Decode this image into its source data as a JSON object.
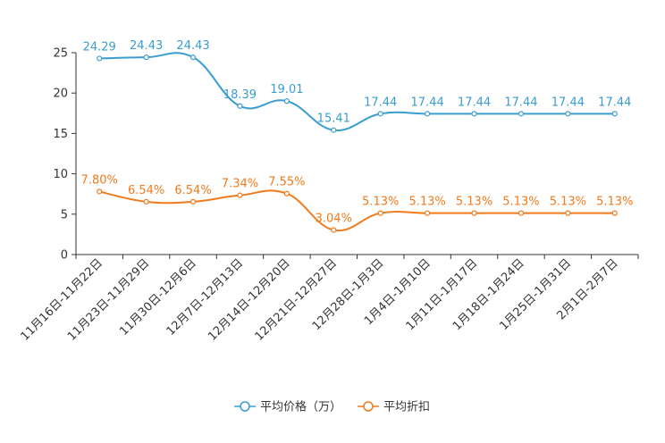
{
  "chart_data": {
    "type": "line",
    "categories": [
      "11月16日-11月22日",
      "11月23日-11月29日",
      "11月30日-12月6日",
      "12月7日-12月13日",
      "12月14日-12月20日",
      "12月21日-12月27日",
      "12月28日-1月3日",
      "1月4日-1月10日",
      "1月11日-1月17日",
      "1月18日-1月24日",
      "1月25日-1月31日",
      "2月1日-2月7日"
    ],
    "ylim": [
      0,
      25
    ],
    "yticks": [
      "0",
      "5",
      "10",
      "15",
      "20",
      "25"
    ],
    "series": [
      {
        "name": "平均价格（万）",
        "color": "#3a9dcf",
        "values": [
          24.29,
          24.43,
          24.43,
          18.39,
          19.01,
          15.41,
          17.44,
          17.44,
          17.44,
          17.44,
          17.44,
          17.44
        ],
        "labels": [
          "24.29",
          "24.43",
          "24.43",
          "18.39",
          "19.01",
          "15.41",
          "17.44",
          "17.44",
          "17.44",
          "17.44",
          "17.44",
          "17.44"
        ]
      },
      {
        "name": "平均折扣",
        "color": "#f07b1d",
        "values": [
          7.8,
          6.54,
          6.54,
          7.34,
          7.55,
          3.04,
          5.13,
          5.13,
          5.13,
          5.13,
          5.13,
          5.13
        ],
        "labels": [
          "7.80%",
          "6.54%",
          "6.54%",
          "7.34%",
          "7.55%",
          "3.04%",
          "5.13%",
          "5.13%",
          "5.13%",
          "5.13%",
          "5.13%",
          "5.13%"
        ]
      }
    ],
    "legend": "bottom-center"
  }
}
